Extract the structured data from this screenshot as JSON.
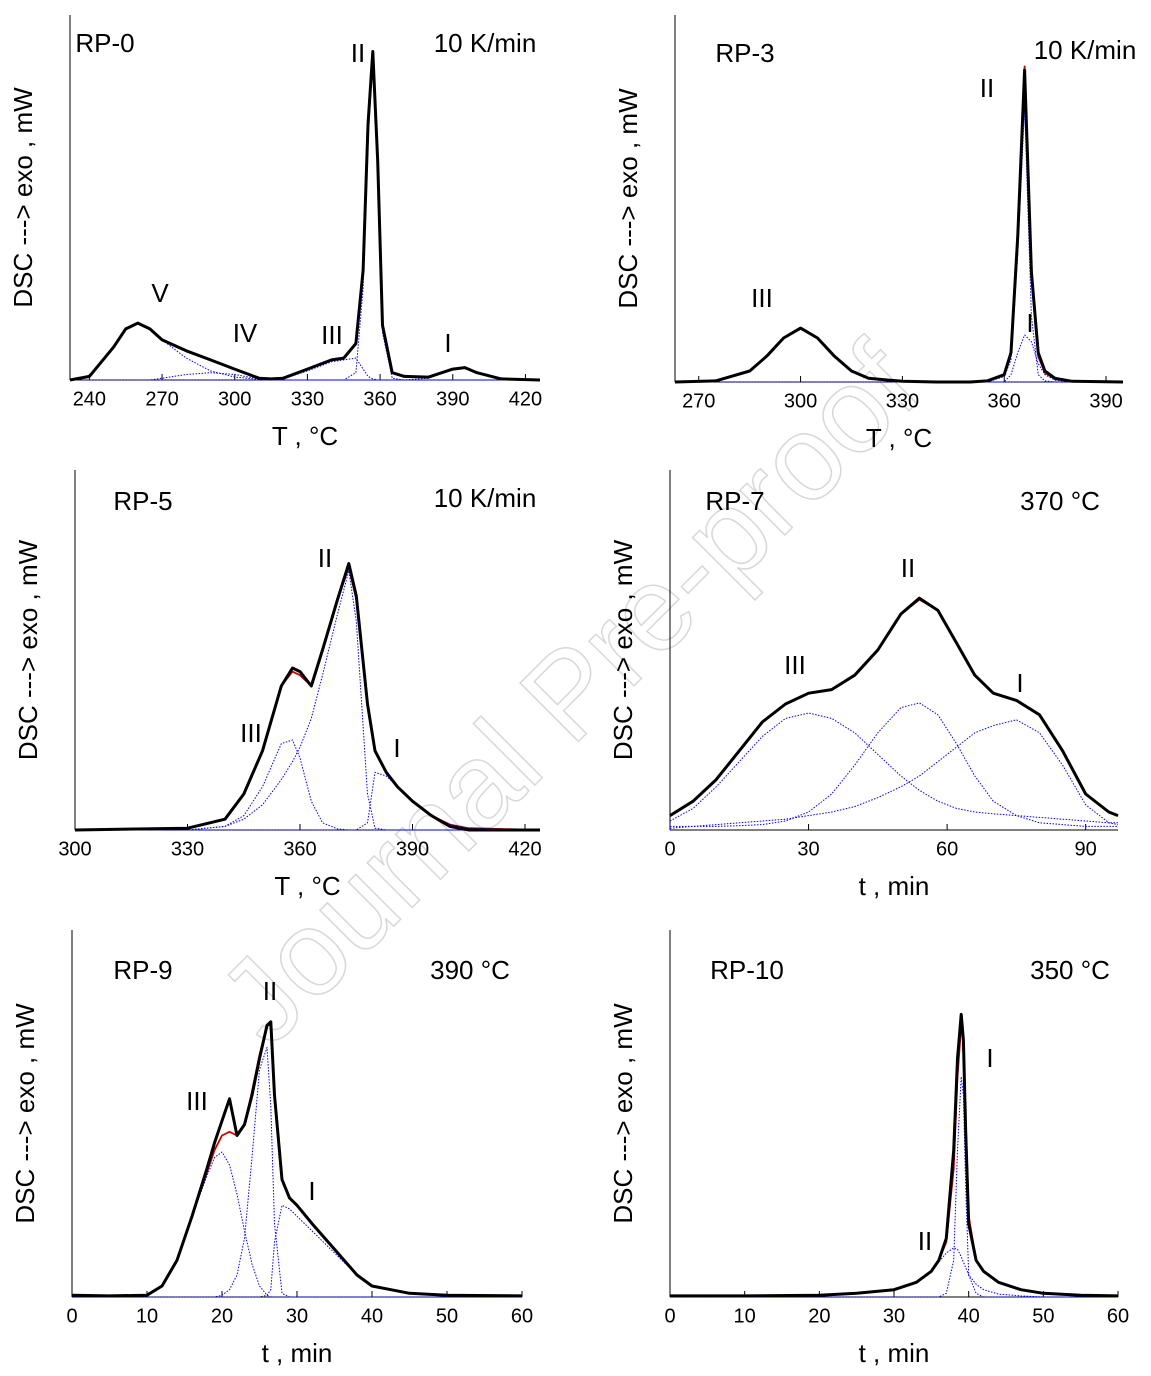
{
  "watermark": "Journal Pre-proof",
  "chart_data": [
    {
      "type": "line",
      "label": "RP-0",
      "condition": "10 K/min",
      "annotations": [
        "V",
        "IV",
        "III",
        "II",
        "I"
      ],
      "xlabel": "T , °C",
      "ylabel": "DSC ---> exo , mW",
      "xlim": [
        232,
        426
      ],
      "ylim": [
        0,
        100
      ],
      "xticks": [
        240,
        270,
        300,
        330,
        360,
        390,
        420
      ],
      "x": [
        232,
        240,
        250,
        255,
        260,
        265,
        270,
        280,
        290,
        300,
        310,
        315,
        320,
        330,
        340,
        345,
        350,
        353,
        355,
        357,
        359,
        361,
        365,
        370,
        380,
        390,
        395,
        400,
        410,
        426
      ],
      "series": [
        {
          "color": "#000000",
          "style": "solid",
          "values": [
            0,
            1,
            9,
            14,
            15.6,
            14,
            11,
            8,
            5.5,
            3,
            0.5,
            0.3,
            0.5,
            3,
            5.5,
            6,
            10,
            30,
            70,
            90,
            60,
            15,
            2,
            1,
            0.8,
            3,
            3.4,
            2,
            0.3,
            0
          ]
        },
        {
          "color": "#0000ff",
          "style": "dotted",
          "values": [
            0,
            1,
            9,
            14,
            15.5,
            14,
            11,
            6,
            2.5,
            0.8,
            0.2,
            0,
            0,
            0,
            0,
            0,
            0,
            0,
            0,
            0,
            0,
            0,
            0,
            0,
            0,
            0,
            0,
            0,
            0,
            0
          ]
        },
        {
          "color": "#0000ff",
          "style": "dotted",
          "values": [
            0,
            0,
            0,
            0,
            0,
            0,
            0.5,
            1.5,
            2,
            1.5,
            0.3,
            0,
            0,
            0,
            0,
            0,
            0,
            0,
            0,
            0,
            0,
            0,
            0,
            0,
            0,
            0,
            0,
            0,
            0,
            0
          ]
        },
        {
          "color": "#0000ff",
          "style": "dotted",
          "values": [
            0,
            0,
            0,
            0,
            0,
            0,
            0,
            0,
            0,
            0,
            0,
            0,
            0.3,
            2.5,
            5,
            5.5,
            6,
            3,
            1,
            0.3,
            0,
            0,
            0,
            0,
            0,
            0,
            0,
            0,
            0,
            0
          ]
        },
        {
          "color": "#0000ff",
          "style": "dotted",
          "values": [
            0,
            0,
            0,
            0,
            0,
            0,
            0,
            0,
            0,
            0,
            0,
            0,
            0,
            0,
            0,
            0,
            2,
            25,
            65,
            88,
            58,
            13,
            0.5,
            0,
            0,
            0,
            0,
            0,
            0,
            0
          ]
        },
        {
          "color": "#0000ff",
          "style": "dotted",
          "values": [
            0,
            0,
            0,
            0,
            0,
            0,
            0,
            0,
            0,
            0,
            0,
            0,
            0,
            0,
            0,
            0,
            0,
            0,
            0,
            0,
            0,
            0,
            0,
            0,
            0.5,
            3,
            3.3,
            1.8,
            0.2,
            0
          ]
        }
      ]
    },
    {
      "type": "line",
      "label": "RP-3",
      "condition": "10 K/min",
      "annotations": [
        "III",
        "II",
        "I"
      ],
      "xlabel": "T , °C",
      "ylabel": "DSC ---> exo , mW",
      "xlim": [
        263,
        395
      ],
      "ylim": [
        0,
        100
      ],
      "xticks": [
        270,
        300,
        330,
        360,
        390
      ],
      "x": [
        263,
        275,
        285,
        290,
        295,
        300,
        305,
        310,
        315,
        320,
        330,
        340,
        350,
        355,
        360,
        362,
        364,
        366,
        368,
        370,
        372,
        375,
        380,
        395
      ],
      "series": [
        {
          "color": "#000000",
          "style": "solid",
          "values": [
            0,
            0.3,
            3,
            7,
            12,
            14.7,
            12,
            7,
            3,
            1,
            0.2,
            0,
            0,
            0.3,
            2,
            8,
            40,
            85,
            30,
            8,
            3,
            1,
            0.2,
            0
          ]
        },
        {
          "color": "#cc0000",
          "style": "solid",
          "values": [
            0,
            0.3,
            3,
            7,
            12,
            14.5,
            12,
            7,
            3,
            1,
            0.2,
            0,
            0,
            0.3,
            2,
            8,
            41,
            86,
            29,
            7,
            2.5,
            0.8,
            0.2,
            0
          ]
        },
        {
          "color": "#0000ff",
          "style": "dotted",
          "values": [
            0,
            0.3,
            3,
            7,
            12,
            14.5,
            12,
            7,
            3,
            1,
            0.2,
            0,
            0,
            0,
            0,
            0,
            0,
            0,
            0,
            0,
            0,
            0,
            0,
            0
          ]
        },
        {
          "color": "#0000ff",
          "style": "dotted",
          "values": [
            0,
            0,
            0,
            0,
            0,
            0,
            0,
            0,
            0,
            0,
            0,
            0,
            0,
            0,
            1.5,
            6,
            35,
            75,
            18,
            2,
            0.3,
            0,
            0,
            0
          ]
        },
        {
          "color": "#0000ff",
          "style": "dotted",
          "values": [
            0,
            0,
            0,
            0,
            0,
            0,
            0,
            0,
            0,
            0,
            0,
            0,
            0,
            0,
            0,
            2,
            8,
            12.8,
            11,
            5,
            2,
            0.5,
            0,
            0
          ]
        }
      ]
    },
    {
      "type": "line",
      "label": "RP-5",
      "condition": "10 K/min",
      "annotations": [
        "II",
        "III",
        "I"
      ],
      "xlabel": "T , °C",
      "ylabel": "DSC ---> exo , mW",
      "xlim": [
        300,
        424
      ],
      "ylim": [
        0,
        100
      ],
      "xticks": [
        300,
        330,
        360,
        390,
        420
      ],
      "x": [
        300,
        330,
        340,
        345,
        350,
        355,
        358,
        360,
        363,
        366,
        370,
        373,
        375,
        378,
        380,
        383,
        386,
        390,
        395,
        400,
        405,
        424
      ],
      "series": [
        {
          "color": "#000000",
          "style": "solid",
          "values": [
            0,
            0.5,
            3,
            10,
            22,
            40,
            45,
            44,
            40,
            50,
            64,
            74,
            65,
            35,
            22,
            16,
            12,
            8,
            4,
            1,
            0,
            0
          ]
        },
        {
          "color": "#cc0000",
          "style": "solid",
          "values": [
            0,
            0.5,
            3,
            10,
            22,
            40,
            44,
            43,
            40,
            50,
            64,
            73,
            64,
            35,
            22,
            16,
            12,
            8,
            4,
            1.5,
            0.5,
            0
          ]
        },
        {
          "color": "#0000ff",
          "style": "dotted",
          "values": [
            0,
            0,
            1,
            4,
            12,
            24,
            25,
            20,
            8,
            2,
            0.3,
            0,
            0,
            0,
            0,
            0,
            0,
            0,
            0,
            0,
            0,
            0
          ]
        },
        {
          "color": "#0000ff",
          "style": "dotted",
          "values": [
            0,
            0,
            1,
            3,
            7,
            14,
            19,
            23,
            31,
            43,
            60,
            72,
            58,
            10,
            0.5,
            0,
            0,
            0,
            0,
            0,
            0,
            0
          ]
        },
        {
          "color": "#0000ff",
          "style": "dotted",
          "values": [
            0,
            0,
            0,
            0,
            0,
            0,
            0,
            0,
            0,
            0,
            0,
            0,
            0,
            2,
            16,
            15,
            12,
            8,
            4,
            1.5,
            0.5,
            0
          ]
        }
      ]
    },
    {
      "type": "line",
      "label": "RP-7",
      "condition": "370 °C",
      "annotations": [
        "II",
        "III",
        "I"
      ],
      "xlabel": "t , min",
      "ylabel": "DSC ---> exo , mW",
      "xlim": [
        0,
        97
      ],
      "ylim": [
        0,
        100
      ],
      "xticks": [
        0,
        30,
        60,
        90
      ],
      "x": [
        0,
        5,
        10,
        15,
        20,
        25,
        30,
        35,
        40,
        45,
        50,
        54,
        58,
        62,
        66,
        70,
        75,
        80,
        85,
        90,
        95,
        97
      ],
      "series": [
        {
          "color": "#000000",
          "style": "solid",
          "values": [
            4,
            8,
            14,
            22,
            30,
            35,
            38,
            39,
            43,
            50,
            60,
            64.4,
            61,
            52,
            43,
            38,
            36,
            32,
            22,
            10,
            5,
            4
          ]
        },
        {
          "color": "#cc0000",
          "style": "solid",
          "values": [
            4,
            8,
            14,
            22,
            30,
            35,
            38,
            39,
            43,
            50,
            60,
            64,
            61,
            52,
            43,
            38,
            36,
            32,
            22,
            10,
            5,
            4
          ]
        },
        {
          "color": "#0000ff",
          "style": "dotted",
          "values": [
            2.5,
            6,
            12,
            19,
            26,
            31,
            32.5,
            31,
            27,
            21,
            15,
            11,
            8,
            6,
            5,
            4.5,
            4,
            3.5,
            3,
            2.5,
            2,
            2
          ]
        },
        {
          "color": "#0000ff",
          "style": "dotted",
          "values": [
            1,
            1,
            1,
            1.2,
            1.5,
            2.5,
            5,
            10,
            18,
            27,
            34,
            35.3,
            32,
            24,
            15,
            8,
            4,
            2,
            1.5,
            1,
            1,
            1
          ]
        },
        {
          "color": "#0000ff",
          "style": "dotted",
          "values": [
            0.5,
            1,
            1.5,
            2,
            2.5,
            3,
            4,
            5,
            6.5,
            9,
            12,
            15,
            19,
            23,
            27,
            29,
            30.6,
            27,
            18,
            7,
            2,
            1.5
          ]
        }
      ]
    },
    {
      "type": "line",
      "label": "RP-9",
      "condition": "390 °C",
      "annotations": [
        "II",
        "III",
        "I"
      ],
      "xlabel": "t , min",
      "ylabel": "DSC ---> exo , mW",
      "xlim": [
        0,
        60
      ],
      "ylim": [
        0,
        100
      ],
      "xticks": [
        0,
        10,
        20,
        30,
        40,
        50,
        60
      ],
      "x": [
        0,
        5,
        10,
        12,
        14,
        16,
        18,
        19,
        20,
        21,
        22,
        23,
        24,
        25,
        26,
        26.5,
        27,
        28,
        29,
        30,
        32,
        35,
        38,
        40,
        45,
        50,
        60
      ],
      "series": [
        {
          "color": "#000000",
          "style": "solid",
          "values": [
            0.5,
            0.3,
            0.5,
            3,
            10,
            22,
            35,
            42,
            48,
            54,
            44,
            47,
            55,
            65,
            74,
            75,
            55,
            32,
            27,
            25,
            20,
            13,
            6,
            3,
            1,
            0.5,
            0.3
          ]
        },
        {
          "color": "#cc0000",
          "style": "solid",
          "values": [
            0.5,
            0.3,
            0.5,
            3,
            10,
            22,
            34,
            40,
            44,
            45,
            44,
            47,
            56,
            66,
            74,
            74,
            56,
            32,
            27,
            25,
            20,
            13,
            6,
            3,
            1,
            0.5,
            0.3
          ]
        },
        {
          "color": "#0000ff",
          "style": "dotted",
          "values": [
            0,
            0,
            0.5,
            3,
            10,
            22,
            33,
            38,
            39.5,
            36,
            28,
            18,
            9,
            3,
            0.5,
            0,
            0,
            0,
            0,
            0,
            0,
            0,
            0,
            0,
            0,
            0,
            0
          ]
        },
        {
          "color": "#0000ff",
          "style": "dotted",
          "values": [
            0,
            0,
            0,
            0,
            0,
            0,
            0,
            0,
            0.5,
            2,
            6,
            16,
            38,
            62,
            68,
            52,
            20,
            1,
            0,
            0,
            0,
            0,
            0,
            0,
            0,
            0,
            0
          ]
        },
        {
          "color": "#0000ff",
          "style": "dotted",
          "values": [
            0,
            0,
            0,
            0,
            0,
            0,
            0,
            0,
            0,
            0,
            0,
            0,
            0,
            0,
            0.5,
            2,
            15,
            25,
            24,
            22,
            18,
            12,
            6,
            3,
            1,
            0.3,
            0
          ]
        }
      ]
    },
    {
      "type": "line",
      "label": "RP-10",
      "condition": "350 °C",
      "annotations": [
        "I",
        "II"
      ],
      "xlabel": "t , min",
      "ylabel": "DSC ---> exo , mW",
      "xlim": [
        0,
        60
      ],
      "ylim": [
        0,
        100
      ],
      "xticks": [
        0,
        10,
        20,
        30,
        40,
        50,
        60
      ],
      "x": [
        0,
        10,
        20,
        25,
        30,
        33,
        35,
        36,
        37,
        38,
        38.5,
        39,
        39.3,
        39.6,
        40,
        41,
        42,
        44,
        47,
        50,
        55,
        60
      ],
      "series": [
        {
          "color": "#000000",
          "style": "solid",
          "values": [
            0.3,
            0.3,
            0.5,
            1,
            2,
            4,
            7,
            10,
            16,
            40,
            65,
            77,
            70,
            45,
            20,
            10,
            7,
            4,
            2,
            1,
            0.5,
            0.3
          ]
        },
        {
          "color": "#cc0000",
          "style": "solid",
          "values": [
            0.3,
            0.3,
            0.5,
            1,
            2,
            4,
            7,
            10,
            15,
            35,
            60,
            74,
            70,
            48,
            22,
            10,
            7,
            4,
            2,
            1,
            0.5,
            0.3
          ]
        },
        {
          "color": "#0000ff",
          "style": "dotted",
          "values": [
            0,
            0,
            0,
            0,
            0,
            0,
            0,
            0,
            1,
            10,
            40,
            60,
            55,
            30,
            6,
            1,
            0,
            0,
            0,
            0,
            0,
            0
          ]
        },
        {
          "color": "#0000ff",
          "style": "dotted",
          "values": [
            0.3,
            0.3,
            0.5,
            1,
            2,
            4,
            7,
            9.5,
            12,
            13.4,
            13,
            11,
            9.5,
            8,
            6,
            3.5,
            2,
            0.8,
            0.3,
            0,
            0,
            0
          ]
        }
      ]
    }
  ]
}
